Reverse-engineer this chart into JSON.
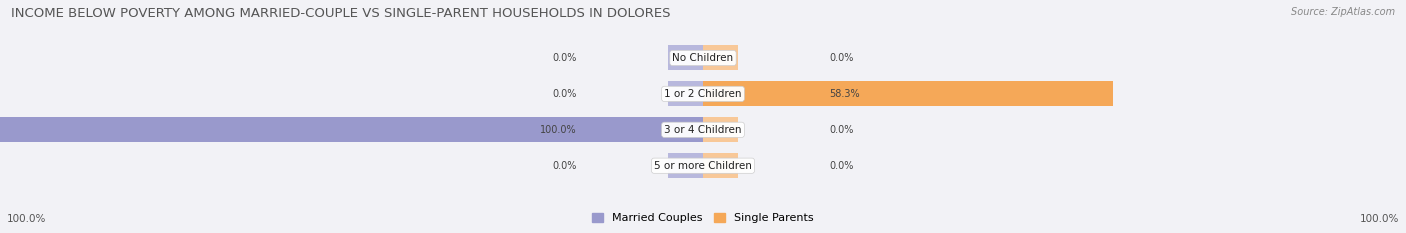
{
  "title": "INCOME BELOW POVERTY AMONG MARRIED-COUPLE VS SINGLE-PARENT HOUSEHOLDS IN DOLORES",
  "source": "Source: ZipAtlas.com",
  "categories": [
    "No Children",
    "1 or 2 Children",
    "3 or 4 Children",
    "5 or more Children"
  ],
  "married_values": [
    0.0,
    0.0,
    100.0,
    0.0
  ],
  "single_values": [
    0.0,
    58.3,
    0.0,
    0.0
  ],
  "married_color": "#9999cc",
  "single_color": "#f5a858",
  "single_color_stub": "#f8c898",
  "married_color_stub": "#b8b8dd",
  "bar_bg_color": "#e8e8f0",
  "bar_bg_outer": "#d8d8e4",
  "title_fontsize": 9.5,
  "label_fontsize": 7.5,
  "tick_fontsize": 7.5,
  "legend_fontsize": 8,
  "married_label": "Married Couples",
  "single_label": "Single Parents",
  "axis_label_left": "100.0%",
  "axis_label_right": "100.0%",
  "max_val": 100.0,
  "stub_size": 5.0,
  "background_color": "#f2f2f6"
}
